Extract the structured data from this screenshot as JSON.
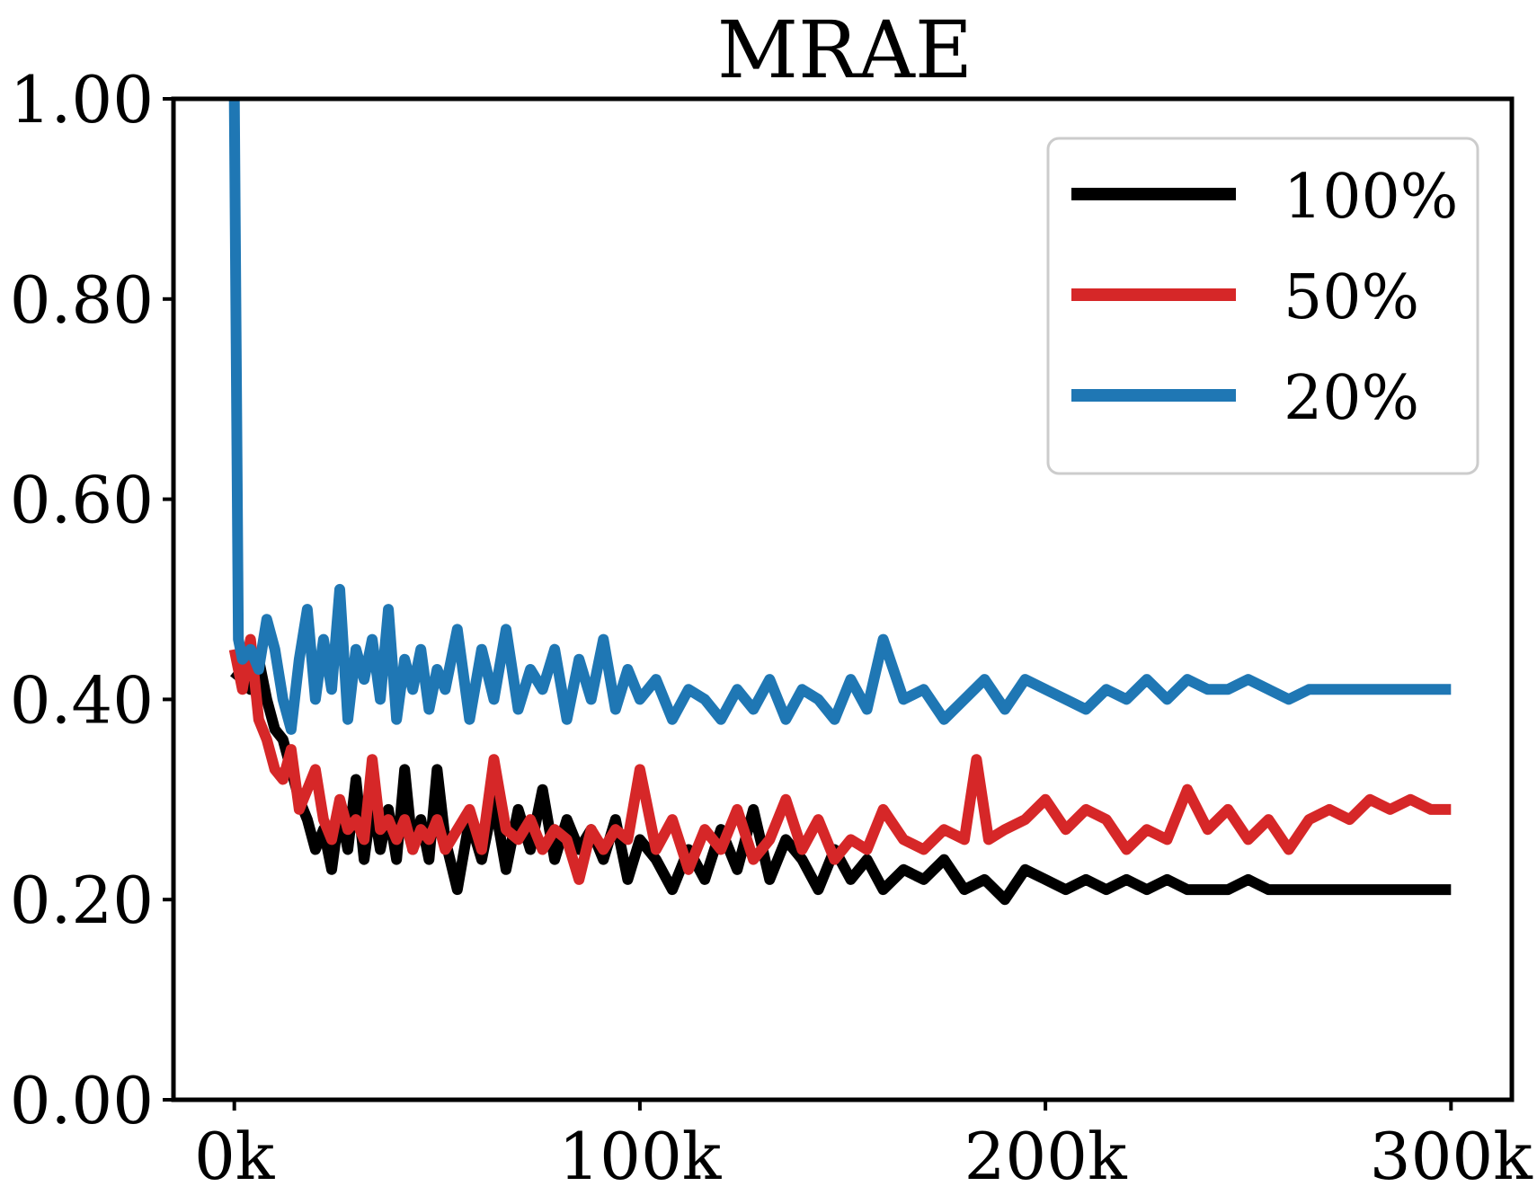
{
  "chart_data": {
    "type": "line",
    "title": "MRAE",
    "xlabel": "",
    "ylabel": "",
    "xlim": [
      -15000,
      315000
    ],
    "ylim": [
      0,
      1
    ],
    "x_ticks": [
      0,
      100000,
      200000,
      300000
    ],
    "x_tick_labels": [
      "0k",
      "100k",
      "200k",
      "300k"
    ],
    "y_ticks": [
      0,
      0.2,
      0.4,
      0.6,
      0.8,
      1.0
    ],
    "y_tick_labels": [
      "0.00",
      "0.20",
      "0.40",
      "0.60",
      "0.80",
      "1.00"
    ],
    "grid": false,
    "legend_position": "upper-right",
    "series": [
      {
        "name": "100%",
        "color": "#000000",
        "x": [
          0,
          2000,
          4000,
          6000,
          8000,
          10000,
          12000,
          14000,
          16000,
          18000,
          20000,
          22000,
          24000,
          26000,
          28000,
          30000,
          32000,
          34000,
          36000,
          38000,
          40000,
          42000,
          44000,
          46000,
          48000,
          50000,
          52000,
          55000,
          58000,
          61000,
          64000,
          67000,
          70000,
          73000,
          76000,
          79000,
          82000,
          85000,
          88000,
          91000,
          94000,
          97000,
          100000,
          104000,
          108000,
          112000,
          116000,
          120000,
          124000,
          128000,
          132000,
          136000,
          140000,
          144000,
          148000,
          152000,
          156000,
          160000,
          165000,
          170000,
          175000,
          180000,
          185000,
          190000,
          195000,
          200000,
          205000,
          210000,
          215000,
          220000,
          225000,
          230000,
          235000,
          240000,
          245000,
          250000,
          255000,
          260000,
          265000,
          270000,
          275000,
          280000,
          285000,
          290000,
          295000,
          300000
        ],
        "y": [
          0.42,
          0.43,
          0.41,
          0.44,
          0.4,
          0.37,
          0.36,
          0.33,
          0.3,
          0.28,
          0.25,
          0.27,
          0.23,
          0.29,
          0.25,
          0.32,
          0.24,
          0.3,
          0.25,
          0.29,
          0.24,
          0.33,
          0.25,
          0.28,
          0.24,
          0.33,
          0.26,
          0.21,
          0.28,
          0.24,
          0.3,
          0.23,
          0.29,
          0.25,
          0.31,
          0.24,
          0.28,
          0.25,
          0.27,
          0.24,
          0.28,
          0.22,
          0.26,
          0.24,
          0.21,
          0.25,
          0.22,
          0.27,
          0.23,
          0.29,
          0.22,
          0.26,
          0.24,
          0.21,
          0.25,
          0.22,
          0.24,
          0.21,
          0.23,
          0.22,
          0.24,
          0.21,
          0.22,
          0.2,
          0.23,
          0.22,
          0.21,
          0.22,
          0.21,
          0.22,
          0.21,
          0.22,
          0.21,
          0.21,
          0.21,
          0.22,
          0.21,
          0.21,
          0.21,
          0.21,
          0.21,
          0.21,
          0.21,
          0.21,
          0.21,
          0.21
        ]
      },
      {
        "name": "50%",
        "color": "#d62728",
        "x": [
          0,
          2000,
          4000,
          6000,
          8000,
          10000,
          12000,
          14000,
          16000,
          18000,
          20000,
          22000,
          24000,
          26000,
          28000,
          30000,
          32000,
          34000,
          36000,
          38000,
          40000,
          42000,
          44000,
          46000,
          48000,
          50000,
          52000,
          55000,
          58000,
          61000,
          64000,
          67000,
          70000,
          73000,
          76000,
          79000,
          82000,
          85000,
          88000,
          91000,
          94000,
          97000,
          100000,
          104000,
          108000,
          112000,
          116000,
          120000,
          124000,
          128000,
          132000,
          136000,
          140000,
          144000,
          148000,
          152000,
          156000,
          160000,
          165000,
          170000,
          175000,
          180000,
          183000,
          186000,
          190000,
          195000,
          200000,
          205000,
          210000,
          215000,
          220000,
          225000,
          230000,
          235000,
          240000,
          245000,
          250000,
          255000,
          260000,
          265000,
          270000,
          275000,
          280000,
          285000,
          290000,
          295000,
          300000
        ],
        "y": [
          0.45,
          0.41,
          0.46,
          0.38,
          0.36,
          0.33,
          0.32,
          0.35,
          0.29,
          0.31,
          0.33,
          0.28,
          0.26,
          0.3,
          0.27,
          0.28,
          0.26,
          0.34,
          0.27,
          0.28,
          0.26,
          0.28,
          0.25,
          0.27,
          0.26,
          0.28,
          0.25,
          0.27,
          0.29,
          0.25,
          0.34,
          0.27,
          0.26,
          0.28,
          0.25,
          0.27,
          0.26,
          0.22,
          0.27,
          0.25,
          0.27,
          0.26,
          0.33,
          0.25,
          0.28,
          0.23,
          0.27,
          0.25,
          0.29,
          0.24,
          0.26,
          0.3,
          0.25,
          0.28,
          0.24,
          0.26,
          0.25,
          0.29,
          0.26,
          0.25,
          0.27,
          0.26,
          0.34,
          0.26,
          0.27,
          0.28,
          0.3,
          0.27,
          0.29,
          0.28,
          0.25,
          0.27,
          0.26,
          0.31,
          0.27,
          0.29,
          0.26,
          0.28,
          0.25,
          0.28,
          0.29,
          0.28,
          0.3,
          0.29,
          0.3,
          0.29,
          0.29
        ]
      },
      {
        "name": "20%",
        "color": "#1f77b4",
        "x": [
          0,
          1000,
          2000,
          4000,
          6000,
          8000,
          10000,
          12000,
          14000,
          16000,
          18000,
          20000,
          22000,
          24000,
          26000,
          28000,
          30000,
          32000,
          34000,
          36000,
          38000,
          40000,
          42000,
          44000,
          46000,
          48000,
          50000,
          52000,
          55000,
          58000,
          61000,
          64000,
          67000,
          70000,
          73000,
          76000,
          79000,
          82000,
          85000,
          88000,
          91000,
          94000,
          97000,
          100000,
          104000,
          108000,
          112000,
          116000,
          120000,
          124000,
          128000,
          132000,
          136000,
          140000,
          144000,
          148000,
          152000,
          156000,
          160000,
          165000,
          170000,
          175000,
          180000,
          185000,
          190000,
          195000,
          200000,
          205000,
          210000,
          215000,
          220000,
          225000,
          230000,
          235000,
          240000,
          245000,
          250000,
          255000,
          260000,
          265000,
          270000,
          275000,
          280000,
          285000,
          290000,
          295000,
          300000
        ],
        "y": [
          1.0,
          0.46,
          0.44,
          0.45,
          0.43,
          0.48,
          0.45,
          0.4,
          0.37,
          0.44,
          0.49,
          0.4,
          0.46,
          0.41,
          0.51,
          0.38,
          0.45,
          0.42,
          0.46,
          0.4,
          0.49,
          0.38,
          0.44,
          0.41,
          0.45,
          0.39,
          0.43,
          0.41,
          0.47,
          0.38,
          0.45,
          0.4,
          0.47,
          0.39,
          0.43,
          0.41,
          0.45,
          0.38,
          0.44,
          0.4,
          0.46,
          0.39,
          0.43,
          0.4,
          0.42,
          0.38,
          0.41,
          0.4,
          0.38,
          0.41,
          0.39,
          0.42,
          0.38,
          0.41,
          0.4,
          0.38,
          0.42,
          0.39,
          0.46,
          0.4,
          0.41,
          0.38,
          0.4,
          0.42,
          0.39,
          0.42,
          0.41,
          0.4,
          0.39,
          0.41,
          0.4,
          0.42,
          0.4,
          0.42,
          0.41,
          0.41,
          0.42,
          0.41,
          0.4,
          0.41,
          0.41,
          0.41,
          0.41,
          0.41,
          0.41,
          0.41,
          0.41
        ]
      }
    ]
  }
}
